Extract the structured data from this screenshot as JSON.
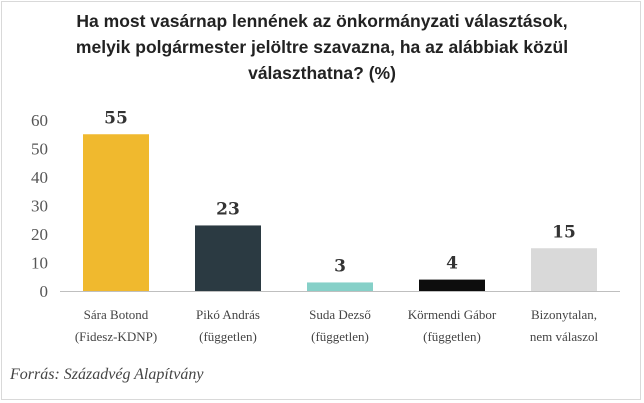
{
  "title_lines": [
    "Ha most vasárnap lennének az önkormányzati választások,",
    "melyik polgármester jelöltre szavazna, ha az alábbiak közül",
    "választhatna? (%)"
  ],
  "source": "Forrás: Századvég Alapítvány",
  "colors": {
    "bars": [
      "#f0b92e",
      "#2b3a42",
      "#86d0c8",
      "#0d0d0d",
      "#d9d9d9"
    ],
    "axis": "#bfbfbf",
    "ticks": "#555555"
  },
  "chart_data": {
    "type": "bar",
    "title": "Ha most vasárnap lennének az önkormányzati választások, melyik polgármester jelöltre szavazna, ha az alábbiak közül választhatna? (%)",
    "categories": [
      [
        "Sára Botond",
        "(Fidesz-KDNP)"
      ],
      [
        "Pikó András",
        "(független)"
      ],
      [
        "Suda Dezső",
        "(független)"
      ],
      [
        "Körmendi Gábor",
        "(független)"
      ],
      [
        "Bizonytalan,",
        "nem válaszol"
      ]
    ],
    "values": [
      55,
      23,
      3,
      4,
      15
    ],
    "data_labels": [
      "55",
      "23",
      "3",
      "4",
      "15"
    ],
    "yticks": [
      0,
      10,
      20,
      30,
      40,
      50,
      60
    ],
    "ylim": [
      0,
      60
    ],
    "xlabel": "",
    "ylabel": "",
    "grid": false,
    "legend": "none"
  }
}
